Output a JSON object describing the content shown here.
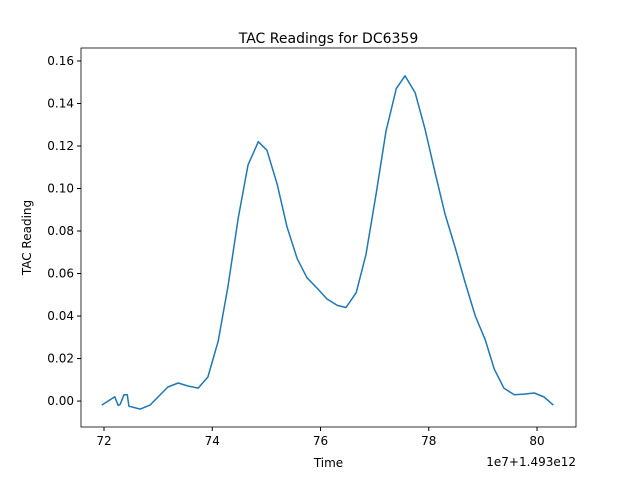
{
  "chart_data": {
    "type": "line",
    "title": "TAC Readings for DC6359",
    "x_label": "Time",
    "y_label": "TAC Reading",
    "x_offset_label": "1e7+1.493e12",
    "x": [
      71.96,
      72.2,
      72.26,
      72.3,
      72.37,
      72.43,
      72.46,
      72.67,
      72.85,
      73.18,
      73.37,
      73.55,
      73.74,
      73.92,
      74.11,
      74.29,
      74.48,
      74.66,
      74.85,
      75.01,
      75.2,
      75.38,
      75.57,
      75.75,
      75.94,
      76.12,
      76.31,
      76.47,
      76.66,
      76.84,
      77.03,
      77.21,
      77.4,
      77.56,
      77.75,
      77.93,
      78.12,
      78.3,
      78.49,
      78.67,
      78.86,
      79.04,
      79.21,
      79.39,
      79.58,
      79.76,
      79.95,
      80.13,
      80.3
    ],
    "series": [
      {
        "name": "TAC",
        "color": "#1f77b4",
        "values": [
          -0.0019,
          0.002,
          -0.002,
          -0.0015,
          0.003,
          0.003,
          -0.0024,
          -0.0038,
          -0.0019,
          0.0066,
          0.0085,
          0.0071,
          0.0061,
          0.0113,
          0.0282,
          0.054,
          0.086,
          0.111,
          0.122,
          0.118,
          0.102,
          0.082,
          0.067,
          0.058,
          0.053,
          0.048,
          0.045,
          0.044,
          0.051,
          0.069,
          0.098,
          0.127,
          0.147,
          0.153,
          0.145,
          0.128,
          0.107,
          0.088,
          0.072,
          0.056,
          0.04,
          0.029,
          0.015,
          0.006,
          0.003,
          0.0033,
          0.0038,
          0.0019,
          -0.0019
        ]
      }
    ],
    "xlim": [
      71.575,
      80.72
    ],
    "xticks": [
      72,
      74,
      76,
      78,
      80
    ],
    "ylim": [
      -0.0122,
      0.1661
    ],
    "yticks": [
      {
        "value": 0,
        "label": "0.00"
      },
      {
        "value": 0.02,
        "label": "0.02"
      },
      {
        "value": 0.04,
        "label": "0.04"
      },
      {
        "value": 0.06,
        "label": "0.06"
      },
      {
        "value": 0.08,
        "label": "0.08"
      },
      {
        "value": 0.1,
        "label": "0.10"
      },
      {
        "value": 0.12,
        "label": "0.12"
      },
      {
        "value": 0.14,
        "label": "0.14"
      },
      {
        "value": 0.16,
        "label": "0.16"
      }
    ],
    "grid": false
  }
}
